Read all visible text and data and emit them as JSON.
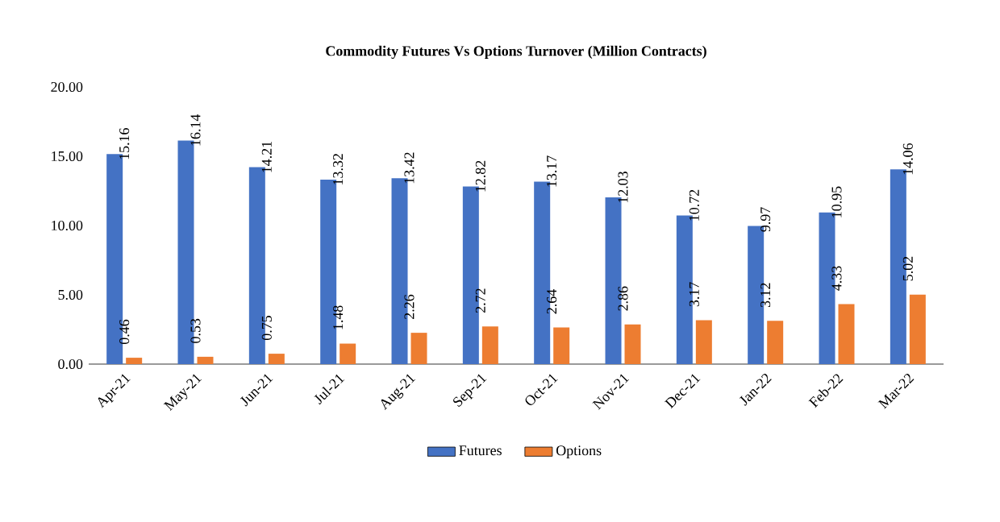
{
  "chart_data": {
    "type": "bar",
    "title": "Commodity  Futures Vs Options Turnover (Million Contracts)",
    "categories": [
      "Apr-21",
      "May-21",
      "Jun-21",
      "Jul-21",
      "Aug-21",
      "Sep-21",
      "Oct-21",
      "Nov-21",
      "Dec-21",
      "Jan-22",
      "Feb-22",
      "Mar-22"
    ],
    "series": [
      {
        "name": "Futures",
        "color": "#4472c4",
        "values": [
          15.16,
          16.14,
          14.21,
          13.32,
          13.42,
          12.82,
          13.17,
          12.03,
          10.72,
          9.97,
          10.95,
          14.06
        ]
      },
      {
        "name": "Options",
        "color": "#ed7d31",
        "values": [
          0.46,
          0.53,
          0.75,
          1.48,
          2.26,
          2.72,
          2.64,
          2.86,
          3.17,
          3.12,
          4.33,
          5.02
        ]
      }
    ],
    "ylim": [
      0,
      20
    ],
    "yticks": [
      {
        "value": 0,
        "label": "0.00"
      },
      {
        "value": 5,
        "label": "5.00"
      },
      {
        "value": 10,
        "label": "10.00"
      },
      {
        "value": 15,
        "label": "15.00"
      },
      {
        "value": 20,
        "label": "20.00"
      }
    ],
    "data_labels": true,
    "legend": "bottom"
  }
}
